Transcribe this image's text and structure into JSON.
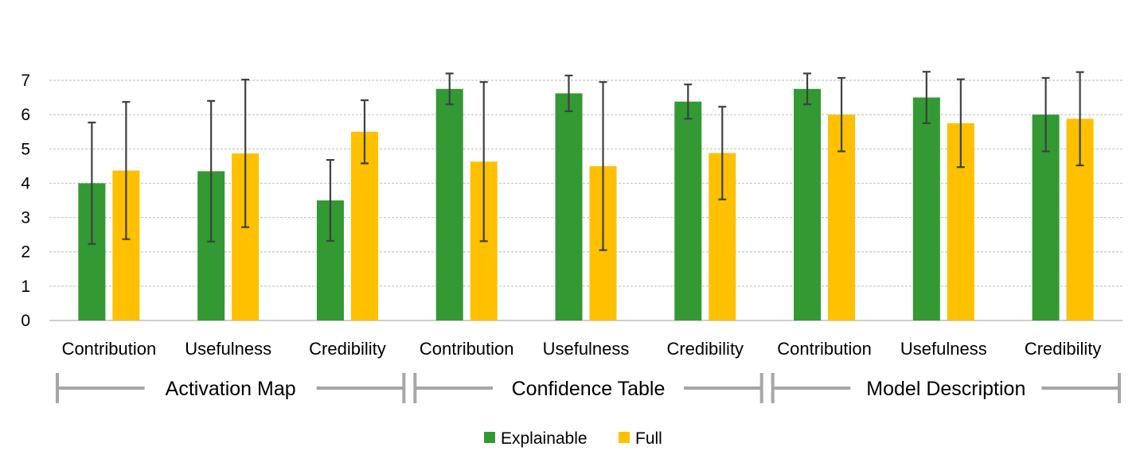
{
  "chart_data": {
    "type": "bar",
    "ylim": [
      0,
      7
    ],
    "yticks": [
      "0",
      "1",
      "2",
      "3",
      "4",
      "5",
      "6",
      "7"
    ],
    "grid": true,
    "legend_position": "bottom",
    "groups": [
      {
        "label": "Activation Map",
        "categories": [
          "Contribution",
          "Usefulness",
          "Credibility"
        ]
      },
      {
        "label": "Confidence Table",
        "categories": [
          "Contribution",
          "Usefulness",
          "Credibility"
        ]
      },
      {
        "label": "Model Description",
        "categories": [
          "Contribution",
          "Usefulness",
          "Credibility"
        ]
      }
    ],
    "categories": [
      "Contribution",
      "Usefulness",
      "Credibility",
      "Contribution",
      "Usefulness",
      "Credibility",
      "Contribution",
      "Usefulness",
      "Credibility"
    ],
    "series": [
      {
        "name": "Explainable",
        "color": "#339933",
        "values": [
          4.0,
          4.35,
          3.5,
          6.75,
          6.62,
          6.38,
          6.75,
          6.5,
          6.0
        ],
        "errors": [
          1.77,
          2.05,
          1.18,
          0.45,
          0.52,
          0.5,
          0.45,
          0.75,
          1.07
        ]
      },
      {
        "name": "Full",
        "color": "#ffc000",
        "values": [
          4.37,
          4.87,
          5.5,
          4.63,
          4.5,
          4.88,
          6.0,
          5.75,
          5.88
        ],
        "errors": [
          2.0,
          2.15,
          0.92,
          2.32,
          2.45,
          1.35,
          1.07,
          1.28,
          1.36
        ]
      }
    ]
  }
}
